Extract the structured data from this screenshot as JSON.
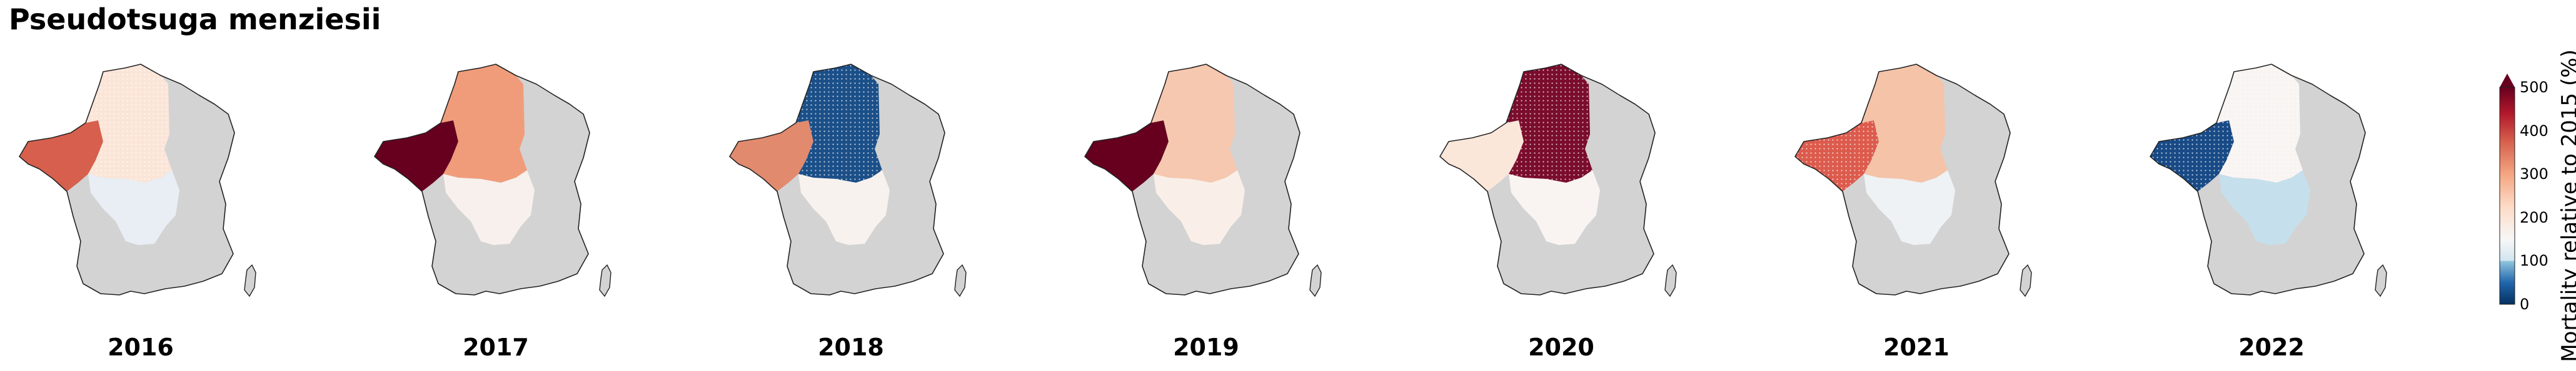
{
  "figure": {
    "species_title": "Pseudotsuga menziesii",
    "baseline_label": "Mortality relative to 2015 (%)"
  },
  "colorbar": {
    "ticks": [
      "500",
      "400",
      "300",
      "200",
      "100",
      "0"
    ],
    "tick_values": [
      500,
      400,
      300,
      200,
      100,
      0
    ],
    "min": 0,
    "max": 500,
    "colors": {
      "low": "#053061",
      "mid": "#f7f7f7",
      "high": "#67001f"
    }
  },
  "regions": [
    "west",
    "north",
    "center",
    "south"
  ],
  "maps": [
    {
      "year": "2016",
      "west": "#d6604d",
      "north": "#fbe5d8",
      "center": "#e8eef4",
      "south": null,
      "hatched": [
        "north"
      ]
    },
    {
      "year": "2017",
      "west": "#67001f",
      "north": "#f09c7b",
      "center": "#f7f0ec",
      "south": null,
      "hatched": []
    },
    {
      "year": "2018",
      "west": "#e28a6e",
      "north": "#1b4f88",
      "center": "#f8f2ee",
      "south": null,
      "hatched": [
        "north"
      ]
    },
    {
      "year": "2019",
      "west": "#67001f",
      "north": "#f6c8b0",
      "center": "#f9efe8",
      "south": null,
      "hatched": []
    },
    {
      "year": "2020",
      "west": "#fbe6da",
      "north": "#7a0c2c",
      "center": "#f9f4f1",
      "south": null,
      "hatched": [
        "north"
      ]
    },
    {
      "year": "2021",
      "west": "#dc5b4d",
      "north": "#f5c3a8",
      "center": "#eef2f5",
      "south": null,
      "hatched": [
        "west"
      ]
    },
    {
      "year": "2022",
      "west": "#184a86",
      "north": "#f8f4f2",
      "center": "#c5dfec",
      "south": null,
      "hatched": [
        "west",
        "north"
      ]
    }
  ]
}
